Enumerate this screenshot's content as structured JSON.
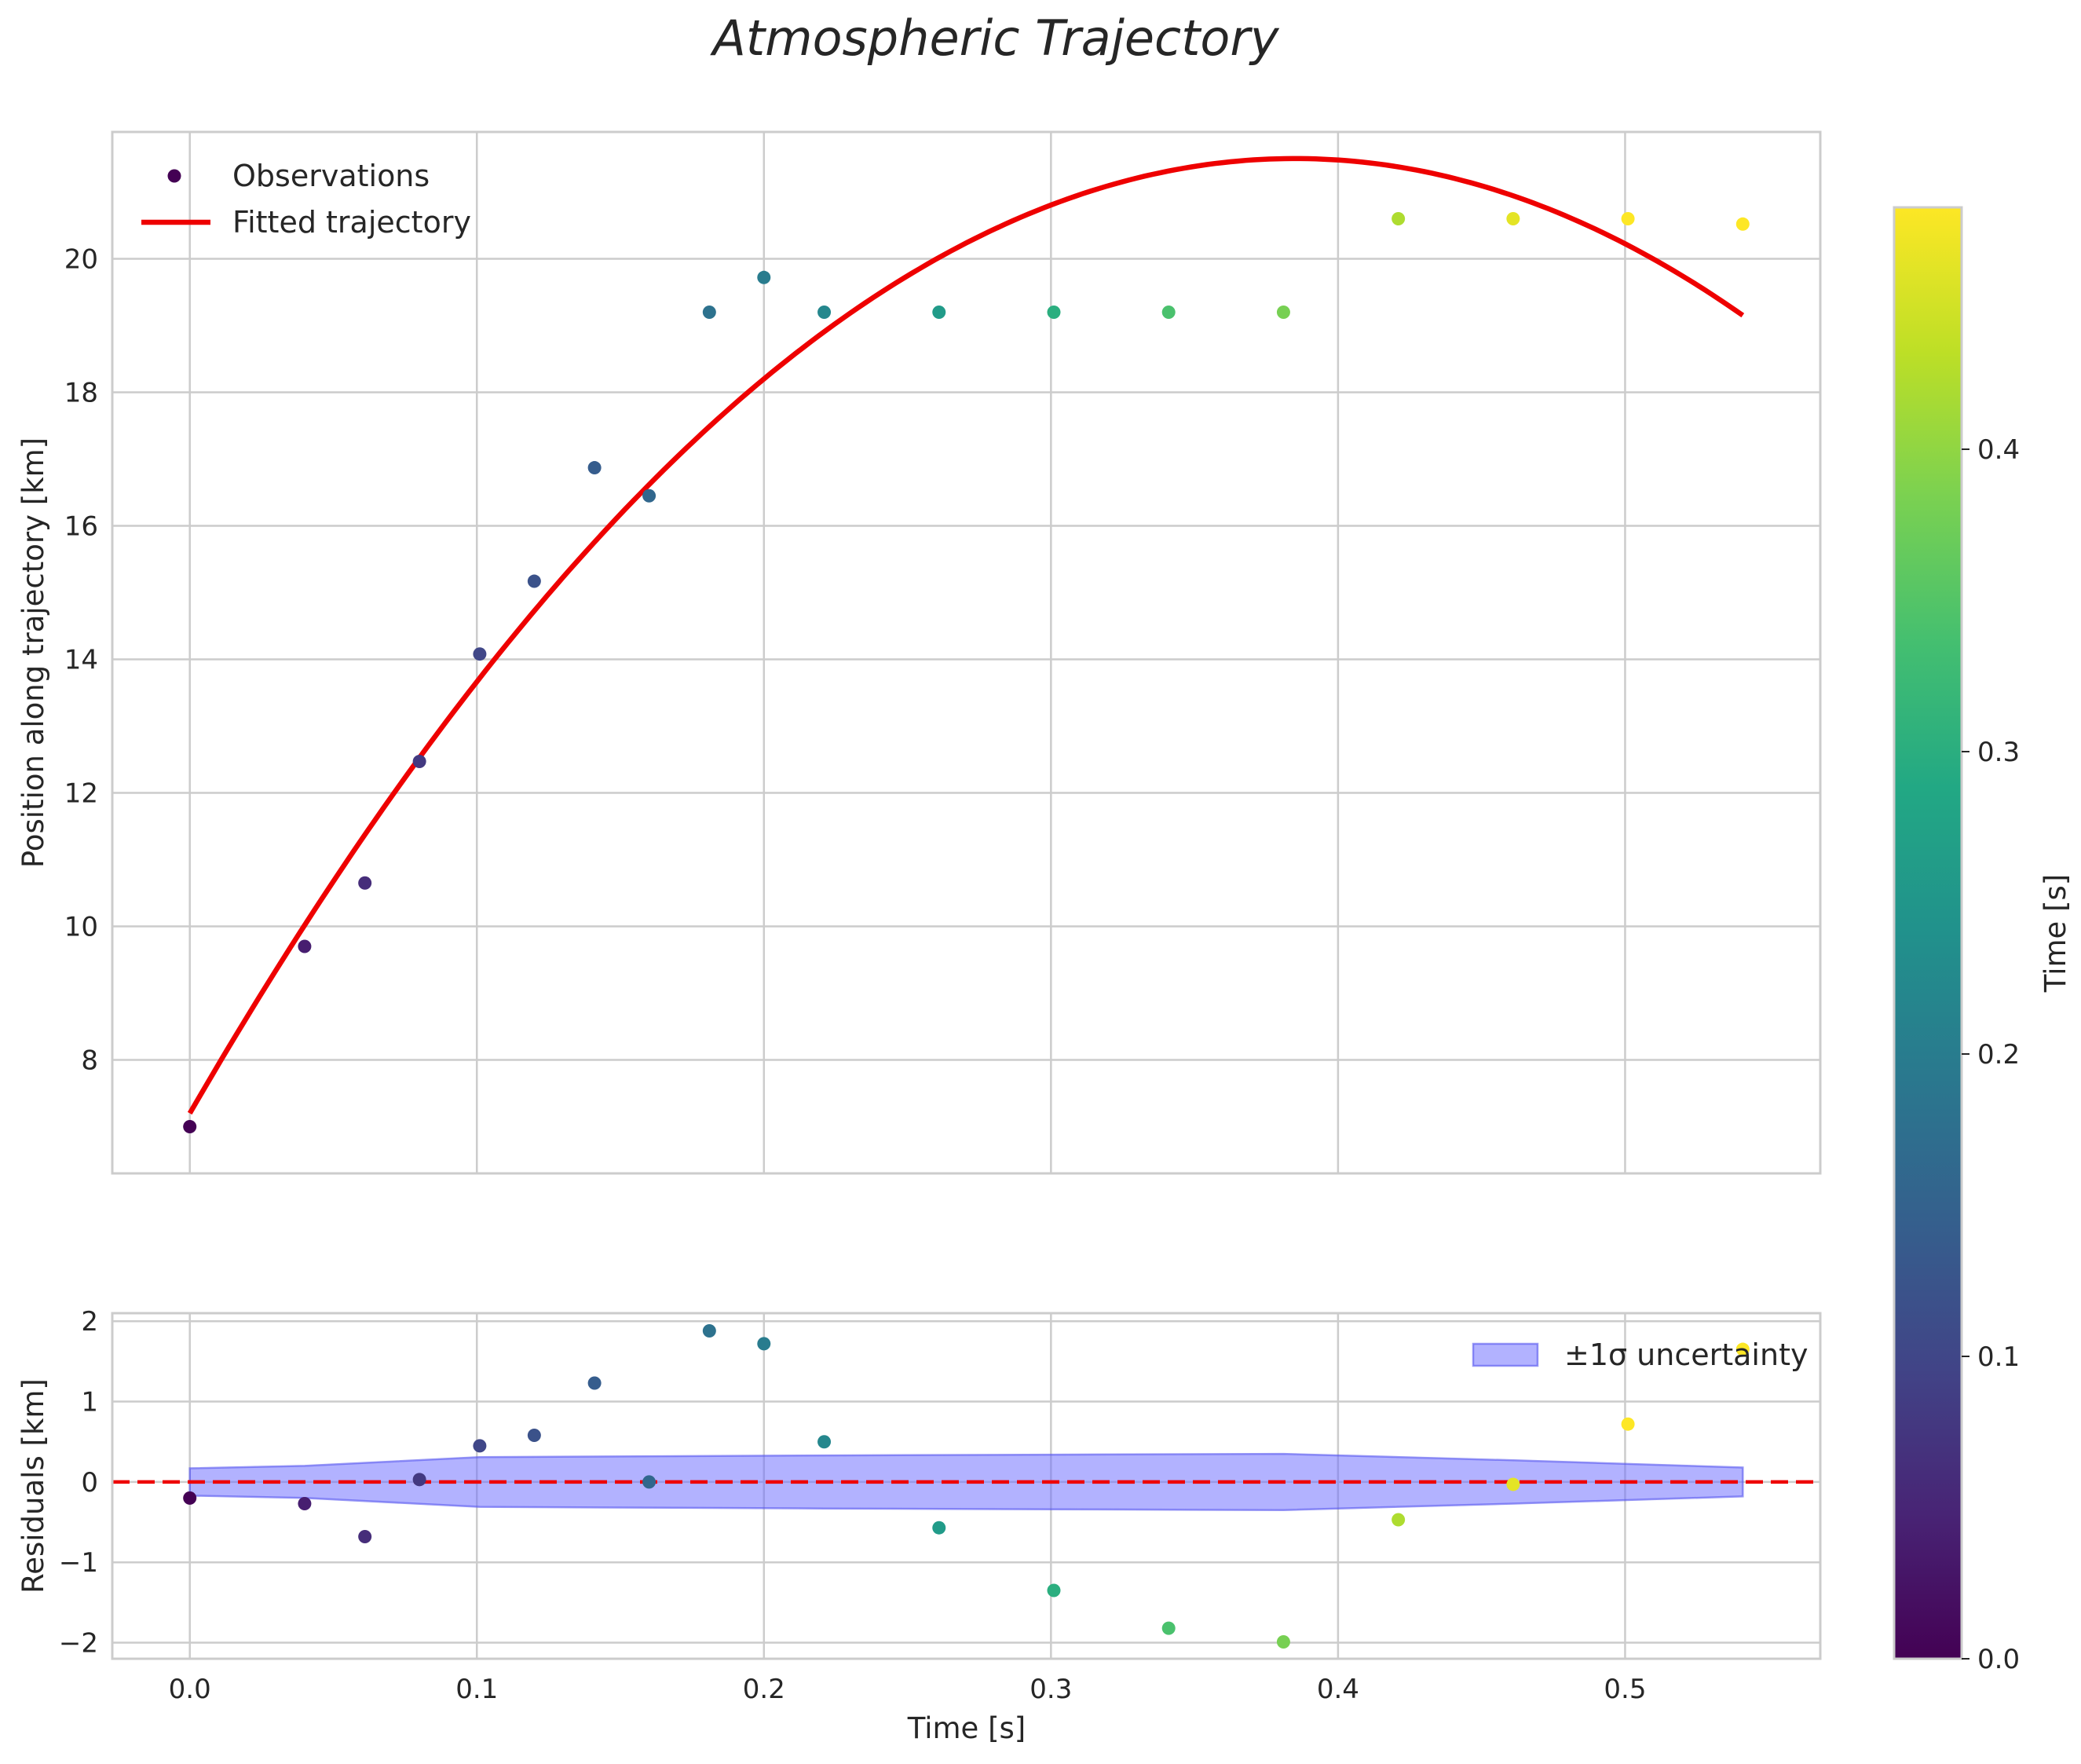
{
  "chart_data": [
    {
      "type": "scatter",
      "title": "Atmospheric Trajectory",
      "xlabel": "",
      "ylabel": "Position along trajectory [km]",
      "xlim": [
        -0.027,
        0.568
      ],
      "ylim": [
        6.3,
        21.9
      ],
      "yticks": [
        8,
        10,
        12,
        14,
        16,
        18,
        20
      ],
      "xticks": [
        0.0,
        0.1,
        0.2,
        0.3,
        0.4,
        0.5
      ],
      "observations": {
        "name": "Observations",
        "x": [
          0.0,
          0.04,
          0.061,
          0.08,
          0.101,
          0.12,
          0.141,
          0.16,
          0.181,
          0.2,
          0.221,
          0.261,
          0.301,
          0.341,
          0.381,
          0.421,
          0.461,
          0.501,
          0.541
        ],
        "y": [
          7.0,
          9.7,
          10.65,
          12.47,
          14.08,
          15.17,
          16.87,
          16.45,
          19.2,
          19.72,
          19.2,
          19.2,
          19.2,
          19.2,
          19.2,
          20.6,
          20.6,
          20.6,
          20.52
        ]
      },
      "fit": {
        "name": "Fitted trajectory",
        "color": "#ee0000",
        "model": "quadratic",
        "coefficients": {
          "a": -96.5,
          "b": 74.3,
          "c": 7.2
        },
        "x_range": [
          0.0,
          0.541
        ]
      },
      "legend": {
        "position": "top-left",
        "entries": [
          "Observations",
          "Fitted trajectory"
        ]
      }
    },
    {
      "type": "scatter",
      "title": "",
      "xlabel": "Time [s]",
      "ylabel": "Residuals [km]",
      "xlim": [
        -0.027,
        0.568
      ],
      "ylim": [
        -2.2,
        2.1
      ],
      "yticks": [
        -2,
        -1,
        0,
        1,
        2
      ],
      "ytick_labels": [
        "−2",
        "−1",
        "0",
        "1",
        "2"
      ],
      "xticks": [
        0.0,
        0.1,
        0.2,
        0.3,
        0.4,
        0.5
      ],
      "xtick_labels": [
        "0.0",
        "0.1",
        "0.2",
        "0.3",
        "0.4",
        "0.5"
      ],
      "residuals": {
        "x": [
          0.0,
          0.04,
          0.061,
          0.08,
          0.101,
          0.12,
          0.141,
          0.16,
          0.181,
          0.2,
          0.221,
          0.261,
          0.301,
          0.341,
          0.381,
          0.421,
          0.461,
          0.501,
          0.541
        ],
        "y": [
          -0.2,
          -0.27,
          -0.68,
          0.03,
          0.45,
          0.58,
          1.23,
          0.0,
          1.88,
          1.72,
          0.5,
          -0.57,
          -1.35,
          -1.82,
          -1.99,
          -0.47,
          -0.03,
          0.72,
          1.65
        ]
      },
      "zero_line": {
        "y": 0,
        "style": "dashed",
        "color": "#ee0000"
      },
      "uncertainty": {
        "name": "±1σ uncertainty",
        "color": "#6666ff",
        "x": [
          0.0,
          0.04,
          0.101,
          0.221,
          0.301,
          0.381,
          0.461,
          0.541
        ],
        "sigma": [
          0.17,
          0.2,
          0.31,
          0.33,
          0.34,
          0.35,
          0.27,
          0.18
        ]
      },
      "legend": {
        "position": "top-right",
        "entries": [
          "±1σ uncertainty"
        ]
      }
    }
  ],
  "colorbar": {
    "label": "Time [s]",
    "colormap": "viridis",
    "range": [
      0.0,
      0.48
    ],
    "ticks": [
      0.0,
      0.1,
      0.2,
      0.3,
      0.4
    ],
    "tick_labels": [
      "0.0",
      "0.1",
      "0.2",
      "0.3",
      "0.4"
    ]
  }
}
